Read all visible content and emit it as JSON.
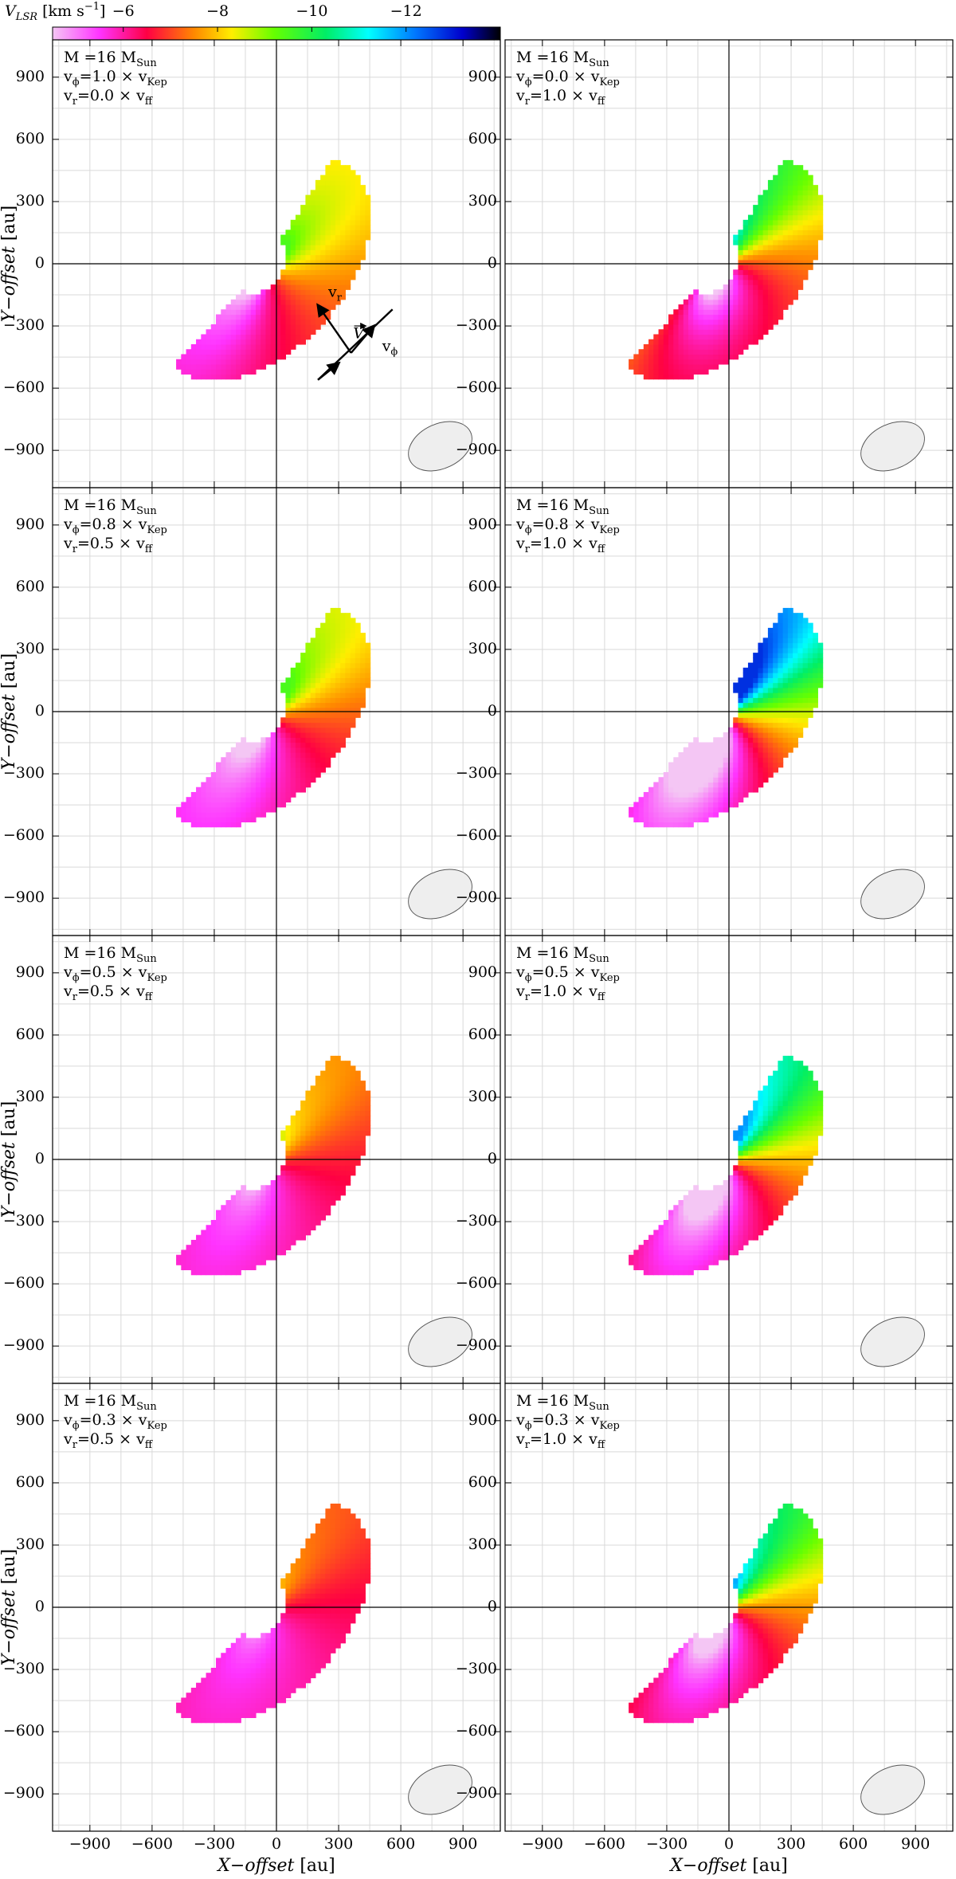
{
  "colorbar": {
    "label": "V",
    "label_sub": "LSR",
    "unit_pre": "[km s",
    "unit_exp": "−1",
    "unit_post": "]",
    "ticks": [
      -6,
      -8,
      -10,
      -12
    ],
    "tick_labels": [
      "−6",
      "−8",
      "−10",
      "−12"
    ],
    "range": [
      -4.5,
      -14
    ],
    "stops": [
      {
        "v": -4.5,
        "color": "#f4c6f4"
      },
      {
        "v": -5.5,
        "color": "#ff33ff"
      },
      {
        "v": -6.5,
        "color": "#ff0044"
      },
      {
        "v": -7.5,
        "color": "#ff8800"
      },
      {
        "v": -8.3,
        "color": "#ffee00"
      },
      {
        "v": -9.2,
        "color": "#66ff00"
      },
      {
        "v": -10.3,
        "color": "#00ee66"
      },
      {
        "v": -11.2,
        "color": "#00ffff"
      },
      {
        "v": -12.2,
        "color": "#0077ff"
      },
      {
        "v": -13.2,
        "color": "#0000cc"
      },
      {
        "v": -14,
        "color": "#000000"
      }
    ]
  },
  "axes": {
    "xlabel": "X−offset",
    "ylabel": "Y−offset",
    "unit": "[au]",
    "xlim": [
      -1080,
      1080
    ],
    "ylim": [
      -1080,
      1080
    ],
    "xticks": [
      -900,
      -600,
      -300,
      0,
      300,
      600,
      900
    ],
    "xtick_labels": [
      "−900",
      "−600",
      "−300",
      "0",
      "300",
      "600",
      "900"
    ],
    "yticks": [
      900,
      600,
      300,
      0,
      -300,
      -600,
      -900
    ],
    "ytick_labels": [
      "900",
      "600",
      "300",
      "0",
      "−300",
      "−600",
      "−900"
    ],
    "grid": true
  },
  "arrow_labels": {
    "vr": "v",
    "vr_sub": "r",
    "vphi": "v",
    "vphi_sub": "ϕ",
    "V": "V"
  },
  "chart_data": [
    {
      "type": "heatmap",
      "mass": "M =16 M",
      "mass_sub": "Sun",
      "vphi": "v",
      "vphi_sub": "ϕ",
      "vphi_val": "=1.0 × v",
      "vphi_val_sub": "Kep",
      "vr": "v",
      "vr_sub": "r",
      "vr_val": "=0.0 × v",
      "vr_val_sub": "ff",
      "velocity_min": -9.5,
      "velocity_max": -4.5
    },
    {
      "type": "heatmap",
      "mass": "M =16 M",
      "mass_sub": "Sun",
      "vphi": "v",
      "vphi_sub": "ϕ",
      "vphi_val": "=0.0 × v",
      "vphi_val_sub": "Kep",
      "vr": "v",
      "vr_sub": "r",
      "vr_val": "=1.0 × v",
      "vr_val_sub": "ff",
      "velocity_min": -12,
      "velocity_max": -4.5
    },
    {
      "type": "heatmap",
      "mass": "M =16 M",
      "mass_sub": "Sun",
      "vphi": "v",
      "vphi_sub": "ϕ",
      "vphi_val": "=0.8 × v",
      "vphi_val_sub": "Kep",
      "vr": "v",
      "vr_sub": "r",
      "vr_val": "=0.5 × v",
      "vr_val_sub": "ff",
      "velocity_min": -9.5,
      "velocity_max": -4.5
    },
    {
      "type": "heatmap",
      "mass": "M =16 M",
      "mass_sub": "Sun",
      "vphi": "v",
      "vphi_sub": "ϕ",
      "vphi_val": "=0.8 × v",
      "vphi_val_sub": "Kep",
      "vr": "v",
      "vr_sub": "r",
      "vr_val": "=1.0 × v",
      "vr_val_sub": "ff",
      "velocity_min": -12.8,
      "velocity_max": -4.5
    },
    {
      "type": "heatmap",
      "mass": "M =16 M",
      "mass_sub": "Sun",
      "vphi": "v",
      "vphi_sub": "ϕ",
      "vphi_val": "=0.5 × v",
      "vphi_val_sub": "Kep",
      "vr": "v",
      "vr_sub": "r",
      "vr_val": "=0.5 × v",
      "vr_val_sub": "ff",
      "velocity_min": -8.8,
      "velocity_max": -4.5
    },
    {
      "type": "heatmap",
      "mass": "M =16 M",
      "mass_sub": "Sun",
      "vphi": "v",
      "vphi_sub": "ϕ",
      "vphi_val": "=0.5 × v",
      "vphi_val_sub": "Kep",
      "vr": "v",
      "vr_sub": "r",
      "vr_val": "=1.0 × v",
      "vr_val_sub": "ff",
      "velocity_min": -12,
      "velocity_max": -4.5
    },
    {
      "type": "heatmap",
      "mass": "M =16 M",
      "mass_sub": "Sun",
      "vphi": "v",
      "vphi_sub": "ϕ",
      "vphi_val": "=0.3 × v",
      "vphi_val_sub": "Kep",
      "vr": "v",
      "vr_sub": "r",
      "vr_val": "=0.5 × v",
      "vr_val_sub": "ff",
      "velocity_min": -8.5,
      "velocity_max": -4.5
    },
    {
      "type": "heatmap",
      "mass": "M =16 M",
      "mass_sub": "Sun",
      "vphi": "v",
      "vphi_sub": "ϕ",
      "vphi_val": "=0.3 × v",
      "vphi_val_sub": "Kep",
      "vr": "v",
      "vr_sub": "r",
      "vr_val": "=1.0 × v",
      "vr_val_sub": "ff",
      "velocity_min": -11.8,
      "velocity_max": -4.5
    }
  ]
}
